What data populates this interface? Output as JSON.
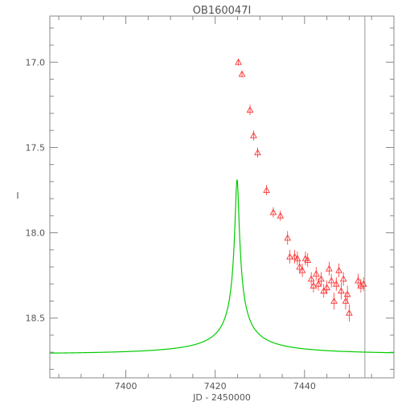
{
  "chart_data": {
    "type": "scatter",
    "title": "OB160047I",
    "xlabel": "JD - 2450000",
    "ylabel": "I",
    "xlim": [
      7383,
      7460
    ],
    "ylim": [
      18.85,
      16.73
    ],
    "y_inverted": true,
    "x_ticks": [
      7400,
      7420,
      7440
    ],
    "x_tick_labels": [
      "7400",
      "7420",
      "7440"
    ],
    "y_ticks": [
      17.0,
      17.5,
      18.0,
      18.5
    ],
    "y_tick_labels": [
      "17.0",
      "17.5",
      "18.0",
      "18.5"
    ],
    "grid": false,
    "vertical_marker_x": 7453.5,
    "model": {
      "color": "#00cc00",
      "t0": 7424.9,
      "u0": 0.0105,
      "tE": 38.0,
      "baseline": 18.71,
      "fs": 0.0167
    },
    "series": [
      {
        "color": "#ff3333",
        "marker": "triangle",
        "points": [
          {
            "x": 7425.2,
            "y": 17.0,
            "err": 0.02
          },
          {
            "x": 7426.0,
            "y": 17.07,
            "err": 0.02
          },
          {
            "x": 7427.8,
            "y": 17.28,
            "err": 0.03
          },
          {
            "x": 7428.6,
            "y": 17.43,
            "err": 0.03
          },
          {
            "x": 7429.5,
            "y": 17.53,
            "err": 0.03
          },
          {
            "x": 7431.5,
            "y": 17.75,
            "err": 0.03
          },
          {
            "x": 7433.0,
            "y": 17.88,
            "err": 0.03
          },
          {
            "x": 7434.6,
            "y": 17.9,
            "err": 0.03
          },
          {
            "x": 7436.2,
            "y": 18.03,
            "err": 0.04
          },
          {
            "x": 7436.7,
            "y": 18.14,
            "err": 0.04
          },
          {
            "x": 7437.8,
            "y": 18.14,
            "err": 0.04
          },
          {
            "x": 7438.4,
            "y": 18.15,
            "err": 0.04
          },
          {
            "x": 7438.9,
            "y": 18.2,
            "err": 0.04
          },
          {
            "x": 7439.5,
            "y": 18.22,
            "err": 0.04
          },
          {
            "x": 7440.2,
            "y": 18.15,
            "err": 0.04
          },
          {
            "x": 7440.7,
            "y": 18.16,
            "err": 0.04
          },
          {
            "x": 7441.5,
            "y": 18.27,
            "err": 0.04
          },
          {
            "x": 7442.0,
            "y": 18.31,
            "err": 0.04
          },
          {
            "x": 7442.6,
            "y": 18.24,
            "err": 0.04
          },
          {
            "x": 7443.1,
            "y": 18.3,
            "err": 0.04
          },
          {
            "x": 7443.7,
            "y": 18.27,
            "err": 0.04
          },
          {
            "x": 7444.3,
            "y": 18.34,
            "err": 0.04
          },
          {
            "x": 7445.0,
            "y": 18.32,
            "err": 0.04
          },
          {
            "x": 7445.5,
            "y": 18.21,
            "err": 0.04
          },
          {
            "x": 7446.0,
            "y": 18.28,
            "err": 0.04
          },
          {
            "x": 7446.6,
            "y": 18.4,
            "err": 0.05
          },
          {
            "x": 7447.1,
            "y": 18.3,
            "err": 0.04
          },
          {
            "x": 7447.7,
            "y": 18.22,
            "err": 0.04
          },
          {
            "x": 7448.2,
            "y": 18.34,
            "err": 0.05
          },
          {
            "x": 7448.7,
            "y": 18.27,
            "err": 0.04
          },
          {
            "x": 7449.2,
            "y": 18.4,
            "err": 0.05
          },
          {
            "x": 7449.6,
            "y": 18.36,
            "err": 0.05
          },
          {
            "x": 7450.0,
            "y": 18.47,
            "err": 0.05
          },
          {
            "x": 7452.0,
            "y": 18.28,
            "err": 0.04
          },
          {
            "x": 7452.6,
            "y": 18.31,
            "err": 0.04
          },
          {
            "x": 7453.2,
            "y": 18.3,
            "err": 0.04
          }
        ]
      }
    ]
  }
}
